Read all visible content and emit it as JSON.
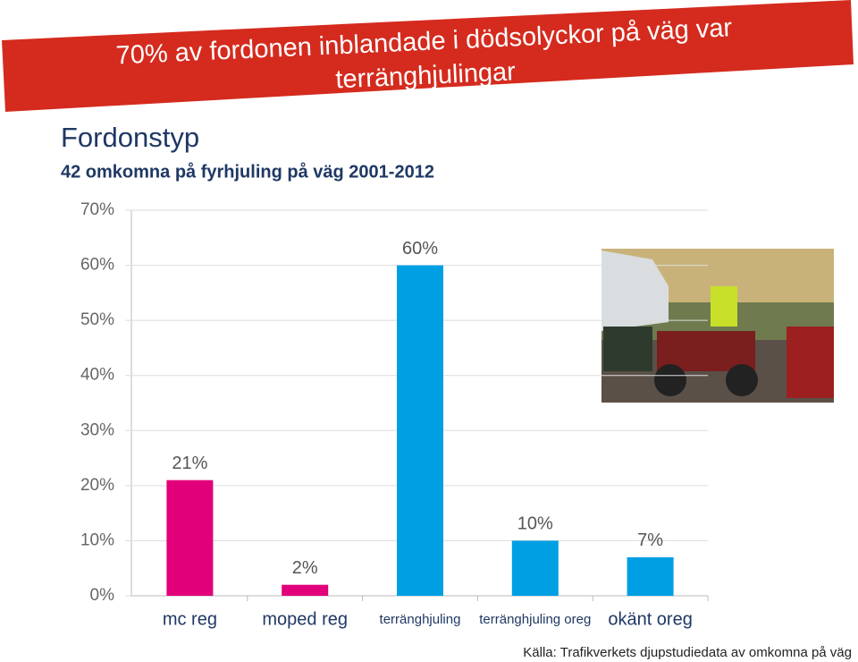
{
  "banner": [
    "70% av fordonen inblandade i dödsolyckor på väg var",
    "terränghjulingar"
  ],
  "chart_data": {
    "type": "bar",
    "title": "Fordonstyp",
    "subtitle": "42 omkomna på fyrhjuling på väg 2001-2012",
    "categories": [
      "mc reg",
      "moped reg",
      "terränghjuling",
      "terränghjuling oreg",
      "okänt oreg"
    ],
    "values": [
      21,
      2,
      60,
      10,
      7
    ],
    "value_labels": [
      "21%",
      "2%",
      "60%",
      "10%",
      "7%"
    ],
    "colors": [
      "#e2007a",
      "#e2007a",
      "#009fe3",
      "#009fe3",
      "#009fe3"
    ],
    "ylim": [
      0,
      70
    ],
    "yticks": [
      {
        "value": 0,
        "label": "0%"
      },
      {
        "value": 10,
        "label": "10%"
      },
      {
        "value": 20,
        "label": "20%"
      },
      {
        "value": 30,
        "label": "30%"
      },
      {
        "value": 40,
        "label": "40%"
      },
      {
        "value": 50,
        "label": "50%"
      },
      {
        "value": 60,
        "label": "60%"
      },
      {
        "value": 70,
        "label": "70%"
      }
    ],
    "grid": true
  },
  "source": "Källa: Trafikverkets djupstudiedata av omkomna på väg"
}
